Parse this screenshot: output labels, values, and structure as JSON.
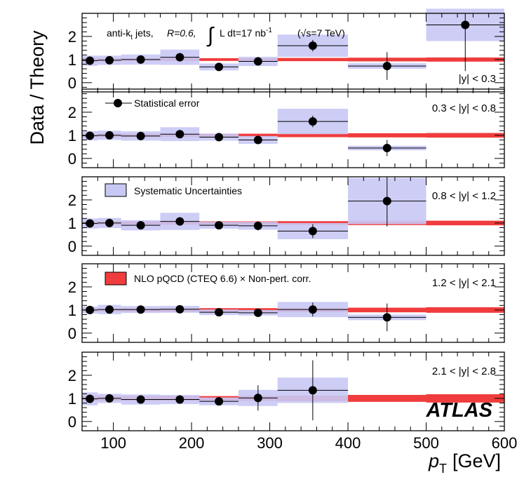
{
  "chart_data": {
    "type": "scatter",
    "title": "",
    "xlabel": "p_T [GeV]",
    "xlabel_main": "p",
    "xlabel_sub": "T",
    "xlabel_unit": "[GeV]",
    "ylabel": "Data / Theory",
    "xlim": [
      60,
      600
    ],
    "ylim": [
      -0.4,
      3.0
    ],
    "x_ticks": [
      100,
      200,
      300,
      400,
      500,
      600
    ],
    "x_tick_labels": [
      "100",
      "200",
      "300",
      "400",
      "500",
      "600"
    ],
    "y_ticks": [
      0,
      1,
      2
    ],
    "y_tick_labels": [
      "0",
      "1",
      "2"
    ],
    "bin_edges": [
      60,
      80,
      110,
      160,
      210,
      260,
      310,
      400,
      500,
      600
    ],
    "header_text": {
      "jets": "anti-k",
      "jets_sub": "t",
      "jets_tail": "jets,",
      "radius": "R=0.6,",
      "integral": "∫",
      "lumi": "L dt=17 nb",
      "lumi_exp": "-1",
      "sqrt_s": "(√s=7 TeV)"
    },
    "experiment": "ATLAS",
    "legend": [
      {
        "label": "Statistical error",
        "marker": "point",
        "panel": 1
      },
      {
        "label": "Systematic Uncertainties",
        "marker": "band-blue",
        "panel": 2
      },
      {
        "label": "NLO pQCD (CTEQ 6.6) × Non-pert. corr.",
        "marker": "band-red",
        "panel": 3
      }
    ],
    "colors": {
      "systematic": "#c8c8f5",
      "theory": "#f03c3c",
      "points": "#000000"
    },
    "panels": [
      {
        "rapidity_label": "|y| < 0.3",
        "x": [
          70,
          95,
          135,
          185,
          235,
          285,
          355,
          450,
          550
        ],
        "y": [
          0.95,
          0.97,
          1.0,
          1.1,
          0.68,
          0.92,
          1.6,
          0.72,
          2.5
        ],
        "stat_err": [
          0.06,
          0.06,
          0.07,
          0.08,
          0.1,
          0.17,
          0.25,
          0.6,
          2.0
        ],
        "syst_err": [
          0.22,
          0.2,
          0.22,
          0.33,
          0.15,
          0.2,
          0.48,
          0.12,
          0.7
        ],
        "theory_half_width": [
          0.06,
          0.06,
          0.06,
          0.06,
          0.06,
          0.06,
          0.07,
          0.08,
          0.09
        ]
      },
      {
        "rapidity_label": "0.3 < |y| < 0.8",
        "x": [
          70,
          95,
          135,
          185,
          235,
          285,
          355,
          450,
          550
        ],
        "y": [
          0.98,
          1.0,
          0.97,
          1.05,
          0.92,
          0.8,
          1.6,
          0.45,
          null
        ],
        "stat_err": [
          0.06,
          0.06,
          0.07,
          0.08,
          0.1,
          0.12,
          0.25,
          0.35,
          0
        ],
        "syst_err": [
          0.2,
          0.2,
          0.2,
          0.3,
          0.15,
          0.17,
          0.55,
          0.1,
          0
        ],
        "theory_half_width": [
          0.07,
          0.07,
          0.07,
          0.07,
          0.07,
          0.07,
          0.08,
          0.09,
          0.1
        ]
      },
      {
        "rapidity_label": "0.8 < |y| < 1.2",
        "x": [
          70,
          95,
          135,
          185,
          235,
          285,
          355,
          450
        ],
        "y": [
          0.98,
          1.0,
          0.9,
          1.07,
          0.9,
          0.88,
          0.65,
          1.95
        ],
        "stat_err": [
          0.06,
          0.06,
          0.07,
          0.08,
          0.1,
          0.2,
          0.3,
          1.1
        ],
        "syst_err": [
          0.22,
          0.22,
          0.22,
          0.37,
          0.15,
          0.17,
          0.35,
          1.0
        ],
        "theory_half_width": [
          0.07,
          0.07,
          0.07,
          0.07,
          0.07,
          0.07,
          0.08,
          0.09,
          0.1
        ]
      },
      {
        "rapidity_label": "1.2 < |y| < 2.1",
        "x": [
          70,
          95,
          135,
          185,
          235,
          285,
          355,
          450
        ],
        "y": [
          1.0,
          1.02,
          1.02,
          1.03,
          0.9,
          0.88,
          1.02,
          0.68
        ],
        "stat_err": [
          0.05,
          0.05,
          0.06,
          0.07,
          0.09,
          0.1,
          0.3,
          0.6
        ],
        "syst_err": [
          0.15,
          0.2,
          0.15,
          0.15,
          0.12,
          0.12,
          0.33,
          0.12
        ],
        "theory_half_width": [
          0.07,
          0.07,
          0.08,
          0.08,
          0.08,
          0.08,
          0.09,
          0.1,
          0.12
        ]
      },
      {
        "rapidity_label": "2.1 < |y| < 2.8",
        "x": [
          70,
          95,
          135,
          185,
          235,
          285,
          355
        ],
        "y": [
          0.98,
          1.0,
          0.95,
          0.95,
          0.87,
          1.02,
          1.35
        ],
        "stat_err": [
          0.08,
          0.08,
          0.1,
          0.12,
          0.15,
          0.55,
          1.3
        ],
        "syst_err": [
          0.28,
          0.2,
          0.22,
          0.2,
          0.17,
          0.35,
          0.55
        ],
        "theory_half_width": [
          0.1,
          0.1,
          0.1,
          0.1,
          0.1,
          0.1,
          0.12,
          0.15,
          0.18
        ]
      }
    ]
  }
}
